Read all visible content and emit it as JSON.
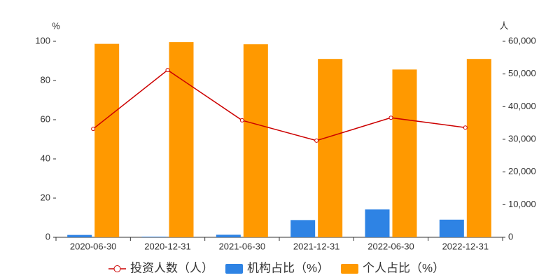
{
  "chart_data": {
    "type": "bar",
    "y_label": "%",
    "y2_label": "人",
    "categories": [
      "2020-06-30",
      "2020-12-31",
      "2021-06-30",
      "2021-12-31",
      "2022-06-30",
      "2022-12-31"
    ],
    "series": [
      {
        "name": "投资人数（人）",
        "type": "line",
        "axis": "y2",
        "color": "#cc0000",
        "values": [
          33200,
          51200,
          35800,
          29600,
          36600,
          33600
        ]
      },
      {
        "name": "机构占比（%）",
        "type": "bar",
        "color": "#2e83e4",
        "values": [
          1.2,
          0.3,
          1.3,
          8.8,
          14.2,
          9.0
        ]
      },
      {
        "name": "个人占比（%）",
        "type": "bar",
        "color": "#ff9900",
        "values": [
          98.7,
          99.6,
          98.5,
          91.0,
          85.6,
          91.0
        ]
      }
    ],
    "ylim": [
      0,
      100
    ],
    "yticks": [
      0,
      20,
      40,
      60,
      80,
      100
    ],
    "y2lim": [
      0,
      60000
    ],
    "y2ticks": [
      0,
      {
        "value": 10000,
        "label": "10,000"
      },
      {
        "value": 20000,
        "label": "20,000"
      },
      {
        "value": 30000,
        "label": "30,000"
      },
      {
        "value": 40000,
        "label": "40,000"
      },
      {
        "value": 50000,
        "label": "50,000"
      },
      {
        "value": 60000,
        "label": "60,000"
      }
    ]
  }
}
